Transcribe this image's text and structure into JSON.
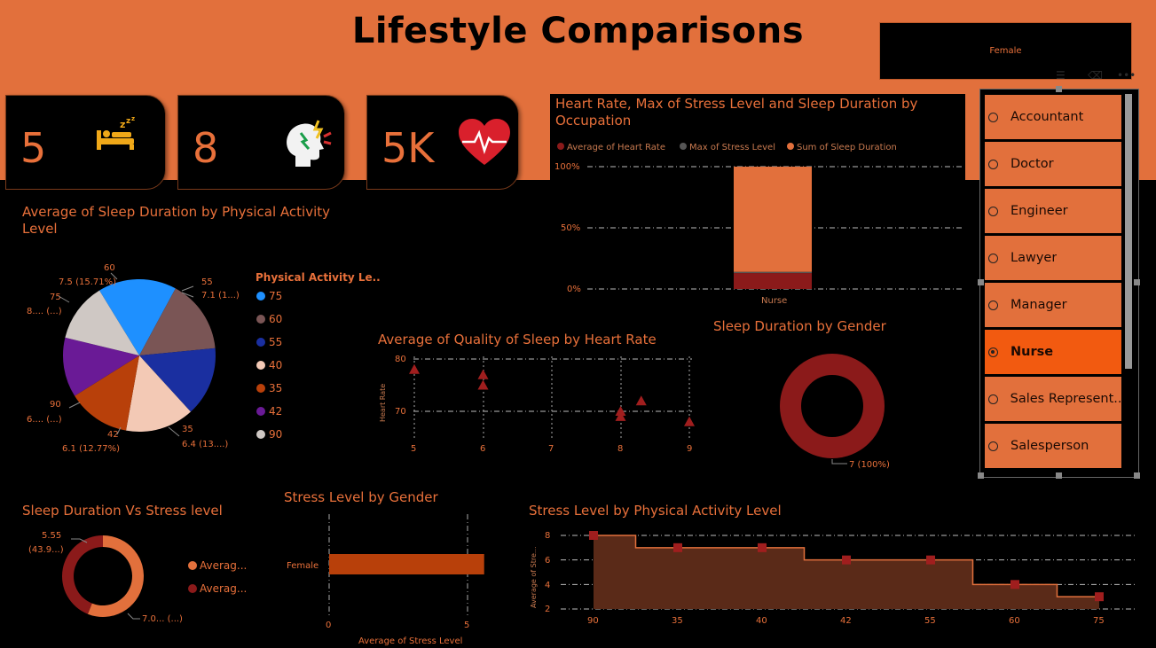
{
  "header": {
    "title": "Lifestyle Comparisons",
    "filter_value": "Female"
  },
  "kpis": [
    {
      "value": "5",
      "icon": "sleeping-bed-icon"
    },
    {
      "value": "8",
      "icon": "stressed-head-icon"
    },
    {
      "value": "5K",
      "icon": "heart-pulse-icon"
    }
  ],
  "colors": {
    "accent": "#e2703c",
    "dark_red": "#8b1a1a",
    "background": "#000000"
  },
  "visuals": {
    "pie": {
      "title": "Average of Sleep Duration by Physical Activity Level",
      "legend_title": "Physical Activity Le..",
      "callouts": {
        "c60": "60",
        "c60b": "7.5 (15.71%)",
        "c55": "55",
        "c55b": "7.1 (1...)",
        "c75": "75",
        "c75b": "8.... (...)",
        "c90": "90",
        "c90b": "6.... (...)",
        "c42": "42",
        "c42b": "6.1 (12.77%)",
        "c35": "35",
        "c35b": "6.4 (13....)"
      }
    },
    "stacked": {
      "title": "Heart Rate, Max of Stress Level and Sleep Duration by Occupation",
      "legend": [
        "Average of Heart Rate",
        "Max of Stress Level",
        "Sum of Sleep Duration"
      ],
      "yticks": [
        "100%",
        "50%",
        "0%"
      ],
      "category": "Nurse"
    },
    "scatter": {
      "title": "Average of Quality of Sleep by Heart Rate",
      "ylabel": "Heart Rate",
      "yticks": [
        "80",
        "70"
      ],
      "xticks": [
        "5",
        "6",
        "7",
        "8",
        "9"
      ]
    },
    "gender_donut": {
      "title": "Sleep Duration by Gender",
      "label": "7 (100%)"
    },
    "stress_donut": {
      "title": "Sleep Duration Vs Stress level",
      "label_top_a": "5.55",
      "label_top_b": "(43.9...)",
      "label_bottom": "7.0... (...)",
      "legend": [
        "Averag...",
        "Averag..."
      ]
    },
    "bar": {
      "title": "Stress Level by Gender",
      "category": "Female",
      "xticks": [
        "0",
        "5"
      ],
      "xlabel": "Average of Stress Level"
    },
    "area": {
      "title": "Stress Level by Physical Activity Level",
      "ylabel": "Average of Stre...",
      "yticks": [
        "8",
        "6",
        "4",
        "2"
      ]
    }
  },
  "slicer": {
    "items": [
      "Accountant",
      "Doctor",
      "Engineer",
      "Lawyer",
      "Manager",
      "Nurse",
      "Sales Represent...",
      "Salesperson"
    ],
    "selected": "Nurse"
  },
  "chart_data": [
    {
      "type": "pie",
      "title": "Average of Sleep Duration by Physical Activity Level",
      "legend_title": "Physical Activity Le..",
      "slices": [
        {
          "label": "75",
          "value": 8.0,
          "color": "#1e90ff"
        },
        {
          "label": "60",
          "value": 7.5,
          "color": "#7a5555"
        },
        {
          "label": "55",
          "value": 7.1,
          "color": "#1a2fa0"
        },
        {
          "label": "40",
          "value": 7.0,
          "color": "#f3c9b5"
        },
        {
          "label": "35",
          "value": 6.4,
          "color": "#b8400a"
        },
        {
          "label": "42",
          "value": 6.1,
          "color": "#6a1a96"
        },
        {
          "label": "90",
          "value": 6.0,
          "color": "#cfc8c4"
        }
      ]
    },
    {
      "type": "bar",
      "title": "Heart Rate, Max of Stress Level and Sleep Duration by Occupation",
      "categories": [
        "Nurse"
      ],
      "ylim": [
        0,
        100
      ],
      "series": [
        {
          "name": "Average of Heart Rate",
          "values": [
            13
          ],
          "color": "#8b1a1a"
        },
        {
          "name": "Max of Stress Level",
          "values": [
            1
          ],
          "color": "#555555"
        },
        {
          "name": "Sum of Sleep Duration",
          "values": [
            86
          ],
          "color": "#e2703c"
        }
      ]
    },
    {
      "type": "scatter",
      "title": "Average of Quality of Sleep by Heart Rate",
      "ylabel": "Heart Rate",
      "xlim": [
        5,
        9
      ],
      "ylim": [
        65,
        80
      ],
      "points": [
        [
          5,
          78
        ],
        [
          6,
          77
        ],
        [
          6,
          75
        ],
        [
          8,
          70
        ],
        [
          8,
          69
        ],
        [
          8.3,
          72
        ],
        [
          9,
          68
        ]
      ]
    },
    {
      "type": "pie",
      "title": "Sleep Duration by Gender",
      "slices": [
        {
          "label": "Female",
          "value": 7,
          "color": "#8b1a1a"
        }
      ]
    },
    {
      "type": "pie",
      "title": "Sleep Duration Vs Stress level",
      "slices": [
        {
          "label": "Averag...",
          "value": 7.08,
          "color": "#e2703c"
        },
        {
          "label": "Averag...",
          "value": 5.55,
          "color": "#8b1a1a"
        }
      ]
    },
    {
      "type": "bar",
      "title": "Stress Level by Gender",
      "categories": [
        "Female"
      ],
      "values": [
        5.6
      ],
      "xlim": [
        0,
        5.9
      ],
      "xlabel": "Average of Stress Level"
    },
    {
      "type": "area",
      "title": "Stress Level by Physical Activity Level",
      "ylabel": "Average of Stre...",
      "categories": [
        "90",
        "35",
        "40",
        "42",
        "55",
        "60",
        "75"
      ],
      "values": [
        8,
        7,
        7,
        6,
        6,
        4,
        3
      ],
      "ylim": [
        2,
        8
      ]
    }
  ]
}
